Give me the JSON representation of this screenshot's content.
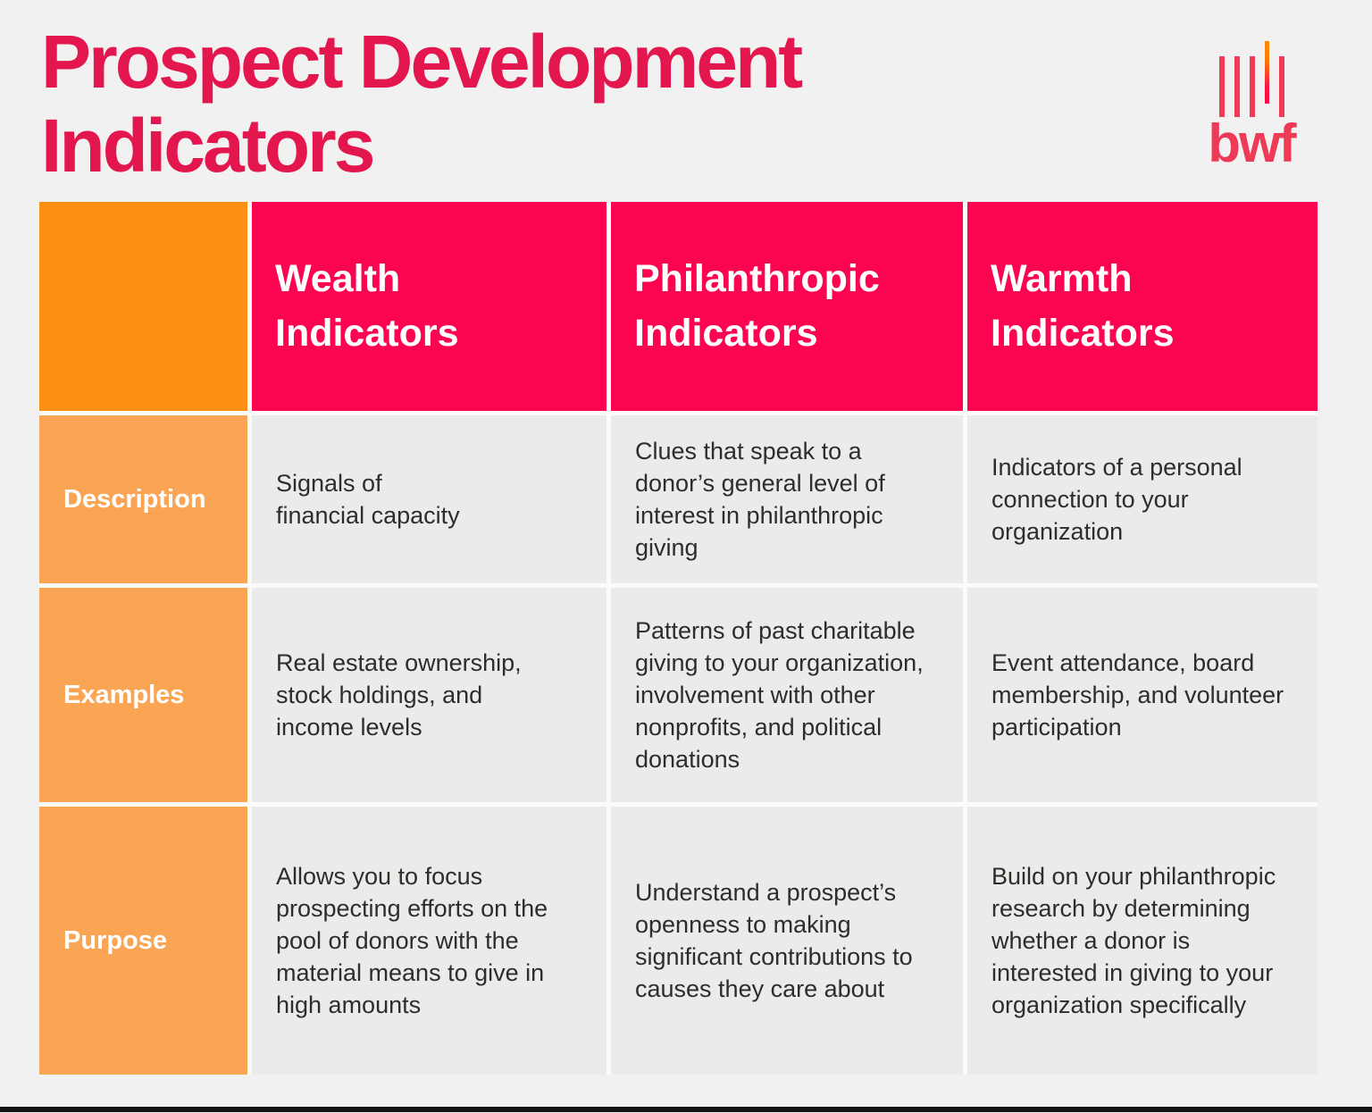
{
  "page": {
    "title": "Prospect Development\nIndicators",
    "colors": {
      "background": "#f1f1f2",
      "title_crimson": "#e3164e",
      "header_pink": "#fb0450",
      "header_orange": "#fb9014",
      "row_label_orange": "#faa553",
      "body_cell_gray": "#ebebe9",
      "logo_rose": "#ee3a57",
      "logo_gradient_top": "#fb8b00",
      "logo_gradient_bottom": "#fb0a4c",
      "bottom_bar": "#141414"
    }
  },
  "logo": {
    "wordmark": "bwf"
  },
  "table": {
    "column_headers": [
      "Wealth\nIndicators",
      "Philanthropic\nIndicators",
      "Warmth\nIndicators"
    ],
    "rows": [
      {
        "label": "Description",
        "cells": [
          "Signals of\nfinancial capacity",
          "Clues that speak to a\ndonor’s general level of\ninterest in philanthropic\ngiving",
          "Indicators of a personal\nconnection to your\norganization"
        ]
      },
      {
        "label": "Examples",
        "cells": [
          "Real estate ownership,\nstock holdings, and\nincome levels",
          "Patterns of past charitable\ngiving to your organization,\ninvolvement with other\nnonprofits, and political\ndonations",
          "Event attendance, board\nmembership, and volunteer\nparticipation"
        ]
      },
      {
        "label": "Purpose",
        "cells": [
          "Allows you to focus\nprospecting efforts on the\npool of donors with the\nmaterial means to give in\nhigh amounts",
          "Understand a prospect’s\nopenness to making\nsignificant contributions to\ncauses they care about",
          "Build on your philanthropic\nresearch by determining\nwhether a donor is\ninterested in giving to your\norganization specifically"
        ]
      }
    ]
  }
}
